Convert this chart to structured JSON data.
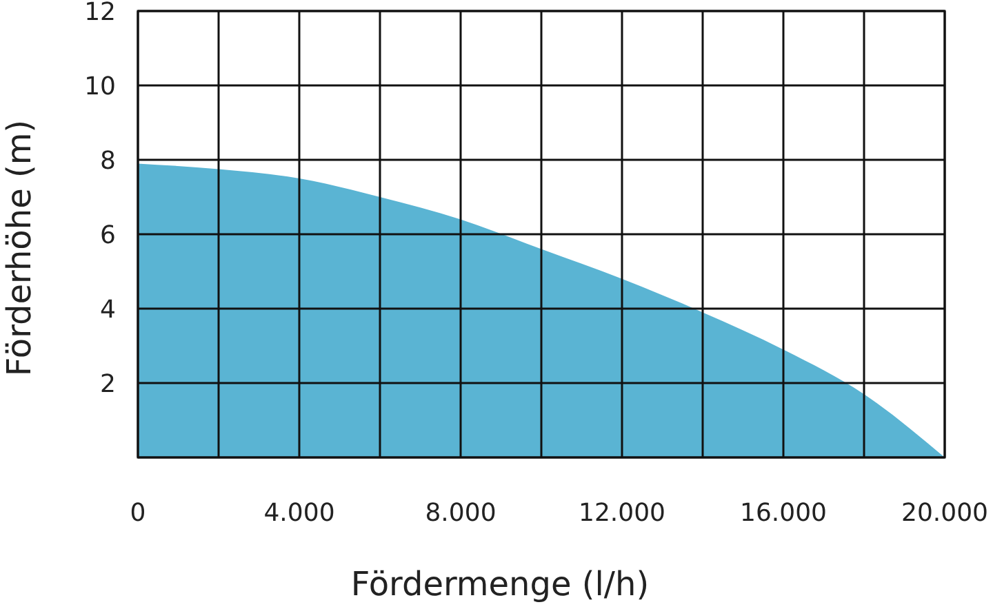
{
  "chart_data": {
    "type": "area",
    "xlabel": "Fördermenge (l/h)",
    "ylabel": "Förderhöhe (m)",
    "x": [
      0,
      2000,
      4000,
      6000,
      8000,
      10000,
      12000,
      14000,
      16000,
      18000,
      20000
    ],
    "values": [
      7.9,
      7.75,
      7.5,
      7.0,
      6.4,
      5.6,
      4.8,
      3.9,
      2.9,
      1.7,
      0
    ],
    "color": "#5ab4d3",
    "xlim": [
      0,
      20000
    ],
    "ylim": [
      0,
      12
    ],
    "xticks": [
      0,
      {
        "value": 2000,
        "label": null
      },
      {
        "value": 4000,
        "label": "4.000"
      },
      {
        "value": 6000,
        "label": null
      },
      {
        "value": 8000,
        "label": "8.000"
      },
      {
        "value": 10000,
        "label": null
      },
      {
        "value": 12000,
        "label": "12.000"
      },
      {
        "value": 14000,
        "label": null
      },
      {
        "value": 16000,
        "label": "16.000"
      },
      {
        "value": 18000,
        "label": null
      },
      {
        "value": 20000,
        "label": "20.000"
      }
    ],
    "yticks": [
      {
        "value": 0,
        "label": null
      },
      2,
      4,
      6,
      8,
      10,
      12
    ],
    "grid": true
  }
}
